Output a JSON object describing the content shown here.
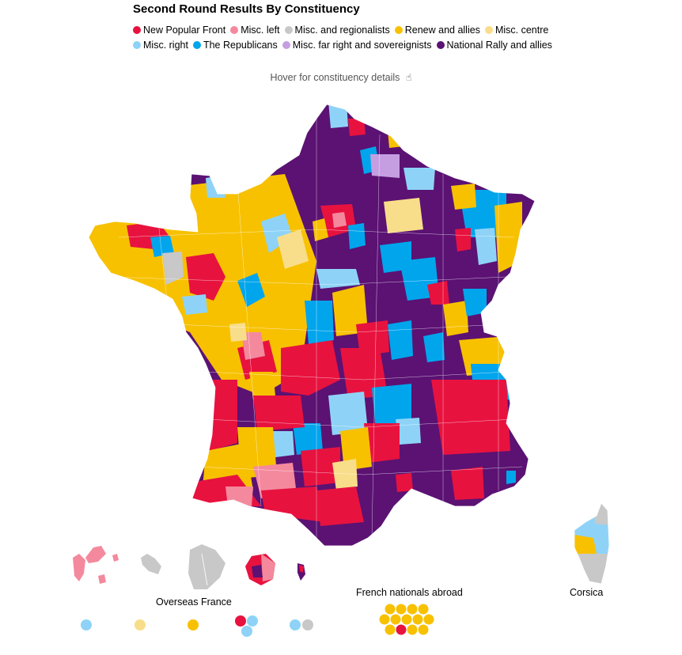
{
  "title": "Second Round Results By Constituency",
  "hover_note": "Hover for constituency details",
  "hover_icon": "pointer-hand-icon",
  "colors": {
    "nfp": "#e8123f",
    "misc_left": "#f4899e",
    "misc_regional": "#c8c8c8",
    "renew": "#f7c100",
    "misc_centre": "#f8de8a",
    "misc_right": "#8ed3f7",
    "republicans": "#00a5ec",
    "misc_far_right": "#c59ee2",
    "rn": "#5b1273"
  },
  "legend": [
    {
      "label": "New Popular Front",
      "key": "nfp"
    },
    {
      "label": "Misc. left",
      "key": "misc_left"
    },
    {
      "label": "Misc. and regionalists",
      "key": "misc_regional"
    },
    {
      "label": "Renew and allies",
      "key": "renew"
    },
    {
      "label": "Misc. centre",
      "key": "misc_centre"
    },
    {
      "label": "Misc. right",
      "key": "misc_right"
    },
    {
      "label": "The Republicans",
      "key": "republicans"
    },
    {
      "label": "Misc. far right and sovereignists",
      "key": "misc_far_right"
    },
    {
      "label": "National Rally and allies",
      "key": "rn"
    }
  ],
  "labels": {
    "overseas": "Overseas France",
    "abroad": "French nationals abroad",
    "corsica": "Corsica"
  },
  "overseas_dots": [
    [
      "misc_right"
    ],
    [
      "misc_centre"
    ],
    [
      "renew"
    ],
    [
      "nfp",
      "misc_right",
      "misc_right"
    ],
    [
      "misc_right",
      "misc_regional"
    ]
  ],
  "abroad_dots": [
    "renew",
    "renew",
    "renew",
    "renew",
    "renew",
    "renew",
    "renew",
    "renew",
    "renew",
    "renew",
    "nfp",
    "renew",
    "renew"
  ]
}
